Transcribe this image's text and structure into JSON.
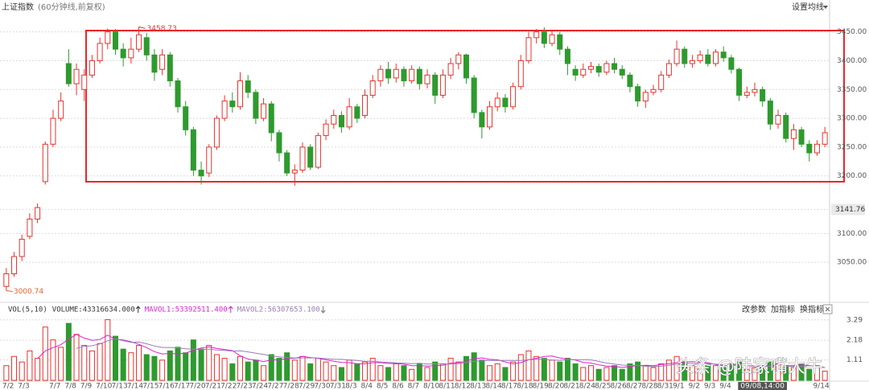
{
  "header": {
    "title": "上证指数",
    "subtitle": "(60分钟线,前复权)",
    "ma_button": "设置均线"
  },
  "chart_data": [
    {
      "type": "candlestick",
      "open": [
        3008,
        3030,
        3060,
        3095,
        3125,
        3190,
        3255,
        3300,
        3395,
        3360,
        3350,
        3375,
        3400,
        3430,
        3450,
        3420,
        3405,
        3420,
        3440,
        3410,
        3385,
        3410,
        3365,
        3320,
        3280,
        3210,
        3205,
        3250,
        3300,
        3330,
        3320,
        3365,
        3345,
        3300,
        3325,
        3275,
        3240,
        3205,
        3210,
        3250,
        3215,
        3270,
        3290,
        3305,
        3285,
        3320,
        3305,
        3340,
        3365,
        3385,
        3370,
        3385,
        3365,
        3385,
        3360,
        3375,
        3340,
        3375,
        3395,
        3410,
        3370,
        3310,
        3285,
        3320,
        3335,
        3320,
        3355,
        3400,
        3440,
        3450,
        3430,
        3445,
        3420,
        3385,
        3375,
        3385,
        3390,
        3380,
        3395,
        3385,
        3375,
        3355,
        3330,
        3345,
        3350,
        3375,
        3395,
        3420,
        3395,
        3400,
        3410,
        3395,
        3415,
        3405,
        3385,
        3340,
        3345,
        3350,
        3330,
        3290,
        3305,
        3265,
        3280,
        3255,
        3240,
        3255
      ],
      "high": [
        3040,
        3068,
        3098,
        3135,
        3152,
        3260,
        3315,
        3345,
        3420,
        3395,
        3385,
        3410,
        3440,
        3456,
        3455,
        3430,
        3440,
        3458.73,
        3448,
        3420,
        3420,
        3415,
        3370,
        3330,
        3285,
        3225,
        3255,
        3305,
        3340,
        3345,
        3380,
        3375,
        3350,
        3335,
        3330,
        3280,
        3245,
        3220,
        3258,
        3255,
        3275,
        3298,
        3315,
        3312,
        3335,
        3325,
        3350,
        3375,
        3392,
        3398,
        3395,
        3390,
        3392,
        3390,
        3385,
        3380,
        3385,
        3405,
        3415,
        3412,
        3375,
        3315,
        3330,
        3345,
        3342,
        3362,
        3410,
        3450,
        3455,
        3458,
        3452,
        3450,
        3425,
        3392,
        3395,
        3398,
        3395,
        3400,
        3405,
        3392,
        3380,
        3360,
        3350,
        3358,
        3382,
        3402,
        3435,
        3425,
        3410,
        3418,
        3420,
        3420,
        3425,
        3410,
        3388,
        3355,
        3362,
        3355,
        3335,
        3315,
        3310,
        3290,
        3285,
        3262,
        3262,
        3285
      ],
      "low": [
        3000.74,
        3025,
        3052,
        3090,
        3118,
        3185,
        3250,
        3295,
        3355,
        3340,
        3330,
        3370,
        3395,
        3420,
        3410,
        3390,
        3395,
        3415,
        3400,
        3365,
        3375,
        3355,
        3310,
        3270,
        3200,
        3185,
        3198,
        3245,
        3295,
        3310,
        3315,
        3335,
        3290,
        3295,
        3260,
        3225,
        3200,
        3183,
        3205,
        3210,
        3212,
        3262,
        3282,
        3275,
        3280,
        3292,
        3300,
        3335,
        3355,
        3360,
        3362,
        3355,
        3360,
        3350,
        3352,
        3325,
        3335,
        3368,
        3385,
        3360,
        3300,
        3265,
        3280,
        3312,
        3310,
        3315,
        3350,
        3395,
        3430,
        3422,
        3425,
        3410,
        3375,
        3365,
        3370,
        3378,
        3372,
        3375,
        3378,
        3368,
        3345,
        3320,
        3318,
        3340,
        3345,
        3370,
        3390,
        3388,
        3388,
        3395,
        3390,
        3390,
        3398,
        3378,
        3330,
        3335,
        3338,
        3320,
        3280,
        3282,
        3258,
        3245,
        3250,
        3225,
        3235,
        3250
      ],
      "close": [
        3030,
        3060,
        3090,
        3125,
        3145,
        3255,
        3300,
        3330,
        3360,
        3385,
        3375,
        3400,
        3430,
        3450,
        3420,
        3405,
        3420,
        3445,
        3410,
        3380,
        3410,
        3365,
        3320,
        3280,
        3210,
        3200,
        3250,
        3300,
        3330,
        3320,
        3365,
        3345,
        3300,
        3325,
        3275,
        3240,
        3205,
        3210,
        3250,
        3215,
        3270,
        3290,
        3305,
        3285,
        3320,
        3300,
        3340,
        3365,
        3385,
        3370,
        3385,
        3365,
        3385,
        3360,
        3375,
        3340,
        3375,
        3395,
        3410,
        3370,
        3310,
        3285,
        3320,
        3335,
        3320,
        3355,
        3400,
        3440,
        3450,
        3430,
        3445,
        3420,
        3395,
        3375,
        3385,
        3390,
        3380,
        3395,
        3385,
        3375,
        3355,
        3330,
        3345,
        3350,
        3375,
        3395,
        3420,
        3395,
        3400,
        3410,
        3395,
        3415,
        3405,
        3385,
        3340,
        3345,
        3350,
        3330,
        3290,
        3305,
        3265,
        3280,
        3255,
        3240,
        3255,
        3275
      ],
      "up_color": "#e8322e",
      "down_color": "#2e9a2e",
      "ylim": [
        2986,
        3497
      ],
      "yticks": [
        {
          "value": 3050,
          "label": "3050.00"
        },
        {
          "value": 3100,
          "label": "3100.00"
        },
        {
          "value": 3200,
          "label": "3200.00"
        },
        {
          "value": 3250,
          "label": "3250.00"
        },
        {
          "value": 3300,
          "label": "3300.00"
        },
        {
          "value": 3350,
          "label": "3350.00"
        },
        {
          "value": 3400,
          "label": "3400.00"
        },
        {
          "value": 3450,
          "label": "3450.00"
        }
      ],
      "grid": true,
      "high_marker": 3458.73,
      "low_marker": 3000.74,
      "cursor_price": 3141.76
    },
    {
      "type": "bar",
      "title": "VOL(5,10)",
      "volume_label": "VOLUME:43316634.000",
      "categories": [
        "7/2",
        null,
        "7/3",
        null,
        null,
        null,
        "7/7",
        null,
        "7/8",
        null,
        "7/9",
        null,
        "7/10",
        null,
        "7/13",
        null,
        "7/14",
        null,
        "7/15",
        null,
        "7/16",
        null,
        "7/17",
        null,
        "7/20",
        null,
        "7/21",
        null,
        "7/22",
        null,
        "7/23",
        null,
        "7/24",
        null,
        "7/27",
        null,
        "7/28",
        null,
        "7/29",
        null,
        "7/30",
        null,
        "7/31",
        null,
        "8/3",
        null,
        "8/4",
        null,
        "8/5",
        null,
        "8/6",
        null,
        "8/7",
        null,
        "8/10",
        null,
        "8/11",
        null,
        "8/12",
        null,
        "8/13",
        null,
        "8/14",
        null,
        "8/17",
        null,
        "8/18",
        null,
        "8/19",
        null,
        "8/20",
        null,
        "8/21",
        null,
        "8/24",
        null,
        "8/25",
        null,
        "8/26",
        null,
        "8/27",
        null,
        "8/28",
        null,
        "8/31",
        null,
        "9/1",
        null,
        "9/2",
        null,
        "9/3",
        null,
        "9/4",
        null,
        null,
        null,
        null,
        "09/08,14:00",
        null,
        null,
        null,
        null,
        null,
        null,
        "9/14",
        null
      ],
      "values": [
        0.8,
        1.3,
        1.0,
        1.6,
        1.2,
        2.9,
        2.2,
        1.8,
        3.1,
        2.5,
        1.9,
        1.6,
        2.0,
        3.3,
        2.4,
        1.7,
        1.5,
        1.9,
        1.4,
        1.3,
        1.1,
        1.6,
        1.8,
        1.5,
        2.2,
        1.7,
        1.9,
        1.4,
        1.2,
        0.9,
        1.3,
        1.0,
        1.1,
        0.8,
        1.4,
        1.2,
        1.5,
        1.1,
        1.3,
        0.9,
        1.2,
        1.0,
        0.8,
        0.7,
        1.1,
        0.9,
        1.0,
        1.2,
        0.8,
        0.7,
        0.9,
        0.8,
        0.6,
        0.9,
        0.7,
        1.0,
        0.9,
        1.2,
        1.0,
        1.3,
        1.5,
        1.1,
        0.8,
        0.9,
        0.7,
        1.0,
        1.4,
        1.6,
        1.3,
        1.2,
        1.1,
        1.0,
        1.2,
        0.9,
        0.7,
        0.8,
        0.6,
        0.7,
        0.8,
        0.6,
        0.9,
        1.0,
        0.8,
        0.7,
        0.9,
        1.1,
        1.3,
        1.0,
        0.8,
        0.7,
        0.9,
        0.8,
        0.7,
        0.9,
        1.0,
        0.6,
        0.7,
        0.8,
        1.0,
        0.9,
        0.8,
        0.7,
        0.9,
        0.6,
        0.8,
        0.5
      ],
      "series": [
        {
          "name": "MAVOL1:53392511.400",
          "color": "#e020d0",
          "values": [
            null,
            null,
            null,
            null,
            1.18,
            1.6,
            1.78,
            1.94,
            2.24,
            2.5,
            2.3,
            2.18,
            2.22,
            2.46,
            2.24,
            2.2,
            2.1,
            1.96,
            1.78,
            1.56,
            1.44,
            1.46,
            1.44,
            1.48,
            1.64,
            1.76,
            1.82,
            1.74,
            1.68,
            1.62,
            1.34,
            1.16,
            1.1,
            1.02,
            1.12,
            1.1,
            1.2,
            1.2,
            1.3,
            1.24,
            1.2,
            1.12,
            1.04,
            0.98,
            0.96,
            0.9,
            0.9,
            0.96,
            0.96,
            0.92,
            0.92,
            0.88,
            0.8,
            0.8,
            0.78,
            0.8,
            0.82,
            0.94,
            0.96,
            1.04,
            1.18,
            1.22,
            1.14,
            1.12,
            1.0,
            0.9,
            0.96,
            1.12,
            1.2,
            1.3,
            1.32,
            1.22,
            1.16,
            1.1,
            0.98,
            0.94,
            0.84,
            0.78,
            0.76,
            0.7,
            0.76,
            0.8,
            0.82,
            0.8,
            0.86,
            0.9,
            0.96,
            1.0,
            1.02,
            0.98,
            0.96,
            0.86,
            0.8,
            0.8,
            0.86,
            0.8,
            0.78,
            0.76,
            0.82,
            0.8,
            0.8,
            0.8,
            0.84,
            0.8,
            0.76,
            0.7
          ]
        },
        {
          "name": "MAVOL2:56307653.100",
          "color": "#9a7ab8",
          "values": [
            null,
            null,
            null,
            null,
            null,
            null,
            null,
            null,
            null,
            1.74,
            1.85,
            1.88,
            1.98,
            2.15,
            2.27,
            2.15,
            2.07,
            2.08,
            1.99,
            1.87,
            1.79,
            1.79,
            1.77,
            1.72,
            1.7,
            1.66,
            1.7,
            1.65,
            1.63,
            1.59,
            1.61,
            1.55,
            1.48,
            1.41,
            1.33,
            1.28,
            1.24,
            1.21,
            1.22,
            1.22,
            1.21,
            1.18,
            1.15,
            1.14,
            1.11,
            1.08,
            1.03,
            1.04,
            1.0,
            0.98,
            0.95,
            0.93,
            0.91,
            0.93,
            0.89,
            0.9,
            0.89,
            0.89,
            0.91,
            0.97,
            1.03,
            1.06,
            1.08,
            1.08,
            1.08,
            1.08,
            1.08,
            1.12,
            1.15,
            1.14,
            1.1,
            1.09,
            1.13,
            1.13,
            1.13,
            1.11,
            1.03,
            0.94,
            0.89,
            0.83,
            0.81,
            0.81,
            0.77,
            0.75,
            0.77,
            0.82,
            0.89,
            0.92,
            0.92,
            0.91,
            0.91,
            0.89,
            0.85,
            0.87,
            0.88,
            0.83,
            0.78,
            0.76,
            0.76,
            0.78,
            0.77,
            0.76,
            0.76,
            0.73,
            0.72,
            0.7
          ]
        }
      ],
      "ylim": [
        0,
        3.63
      ],
      "yticks": [
        1.11,
        2.18,
        3.29
      ],
      "grid": true,
      "buttons": [
        "改参数",
        "加指标",
        "换指标"
      ]
    }
  ],
  "watermark": "头条 @陆家嘴大牛"
}
